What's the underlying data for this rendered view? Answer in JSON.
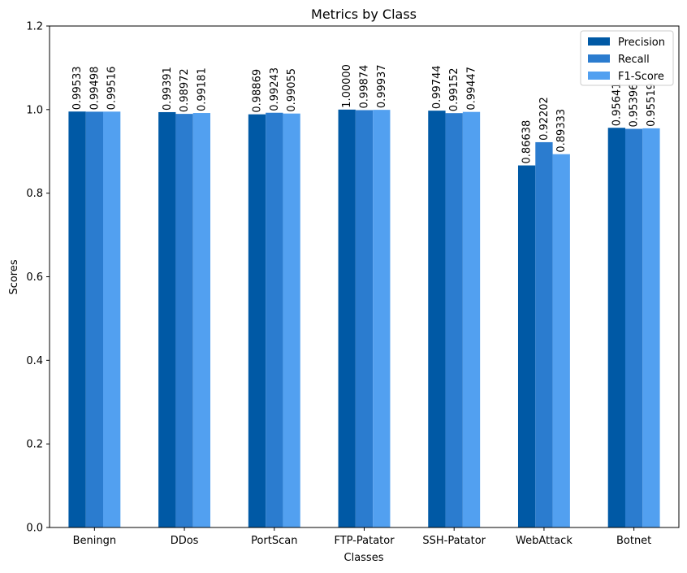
{
  "chart_data": {
    "type": "bar",
    "title": "Metrics by Class",
    "xlabel": "Classes",
    "ylabel": "Scores",
    "ylim": [
      0,
      1.2
    ],
    "yticks": [
      "0.0",
      "0.2",
      "0.4",
      "0.6",
      "0.8",
      "1.0",
      "1.2"
    ],
    "categories": [
      "Beningn",
      "DDos",
      "PortScan",
      "FTP-Patator",
      "SSH-Patator",
      "WebAttack",
      "Botnet"
    ],
    "series": [
      {
        "name": "Precision",
        "color": "#0059a5",
        "values": [
          0.99533,
          0.99391,
          0.98869,
          1.0,
          0.99744,
          0.86638,
          0.95641
        ],
        "labels": [
          "0.99533",
          "0.99391",
          "0.98869",
          "1.00000",
          "0.99744",
          "0.86638",
          "0.95641"
        ]
      },
      {
        "name": "Recall",
        "color": "#2b7ccf",
        "values": [
          0.99498,
          0.98972,
          0.99243,
          0.99874,
          0.99152,
          0.92202,
          0.95396
        ],
        "labels": [
          "0.99498",
          "0.98972",
          "0.99243",
          "0.99874",
          "0.99152",
          "0.92202",
          "0.95396"
        ]
      },
      {
        "name": "F1-Score",
        "color": "#52a0f0",
        "values": [
          0.99516,
          0.99181,
          0.99055,
          0.99937,
          0.99447,
          0.89333,
          0.95519
        ],
        "labels": [
          "0.99516",
          "0.99181",
          "0.99055",
          "0.99937",
          "0.99447",
          "0.89333",
          "0.95519"
        ]
      }
    ],
    "legend_position": "top-right",
    "grid": false
  }
}
